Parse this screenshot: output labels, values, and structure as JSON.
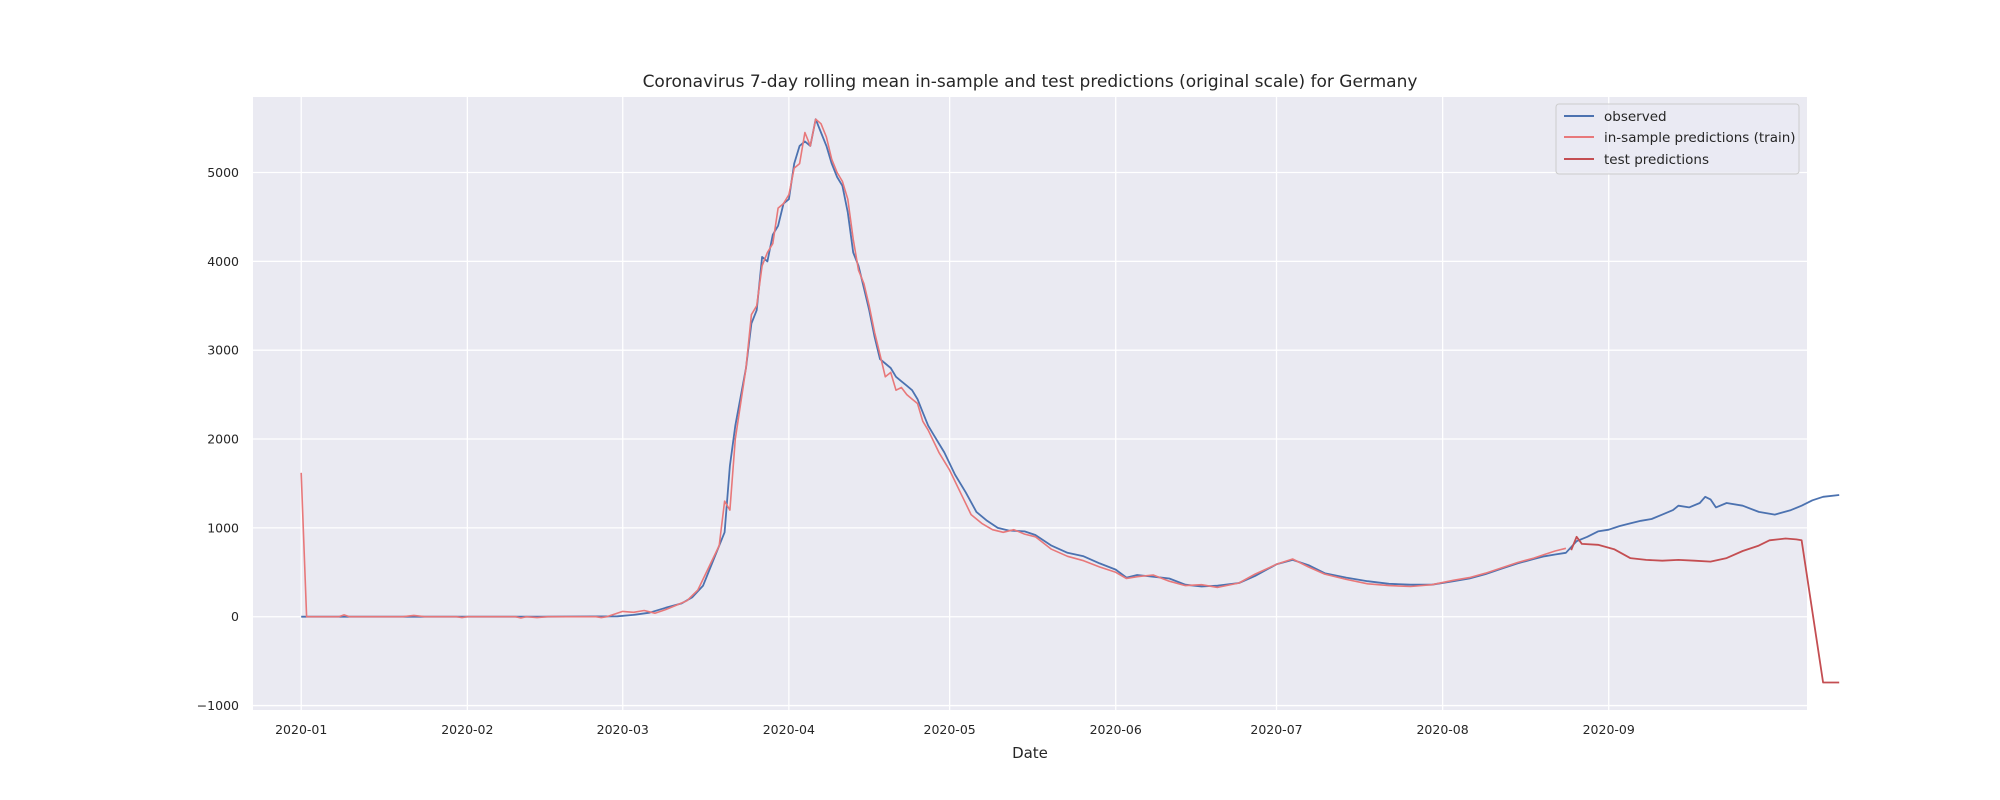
{
  "chart_data": {
    "type": "line",
    "title": "Coronavirus 7-day rolling mean in-sample and test predictions (original scale) for Germany",
    "xlabel": "Date",
    "ylabel": "",
    "x_ticks": [
      "2020-01",
      "2020-02",
      "2020-03",
      "2020-04",
      "2020-05",
      "2020-06",
      "2020-07",
      "2020-08",
      "2020-09"
    ],
    "y_ticks": [
      -1000,
      0,
      1000,
      2000,
      3000,
      4000,
      5000
    ],
    "y_tick_labels": [
      "−1000",
      "0",
      "1000",
      "2000",
      "3000",
      "4000",
      "5000"
    ],
    "xlim": [
      "2019-12-23",
      "2020-10-08"
    ],
    "ylim": [
      -1050,
      5850
    ],
    "grid": true,
    "legend_position": "top-right",
    "colors": {
      "background": "#eaeaf2",
      "grid": "#ffffff",
      "observed": "#4c72b0",
      "train": "#e8787a",
      "test": "#c44e52"
    },
    "series": [
      {
        "name": "observed",
        "color": "#4c72b0",
        "points": [
          [
            "2020-01-01",
            0
          ],
          [
            "2020-01-15",
            0
          ],
          [
            "2020-02-01",
            0
          ],
          [
            "2020-02-15",
            0
          ],
          [
            "2020-02-29",
            5
          ],
          [
            "2020-03-03",
            20
          ],
          [
            "2020-03-06",
            45
          ],
          [
            "2020-03-09",
            100
          ],
          [
            "2020-03-12",
            150
          ],
          [
            "2020-03-14",
            220
          ],
          [
            "2020-03-16",
            350
          ],
          [
            "2020-03-18",
            650
          ],
          [
            "2020-03-20",
            950
          ],
          [
            "2020-03-21",
            1700
          ],
          [
            "2020-03-22",
            2150
          ],
          [
            "2020-03-24",
            2800
          ],
          [
            "2020-03-25",
            3300
          ],
          [
            "2020-03-26",
            3450
          ],
          [
            "2020-03-27",
            4050
          ],
          [
            "2020-03-28",
            4000
          ],
          [
            "2020-03-29",
            4300
          ],
          [
            "2020-03-30",
            4400
          ],
          [
            "2020-03-31",
            4650
          ],
          [
            "2020-04-01",
            4700
          ],
          [
            "2020-04-02",
            5100
          ],
          [
            "2020-04-03",
            5300
          ],
          [
            "2020-04-04",
            5350
          ],
          [
            "2020-04-05",
            5300
          ],
          [
            "2020-04-06",
            5600
          ],
          [
            "2020-04-07",
            5450
          ],
          [
            "2020-04-08",
            5300
          ],
          [
            "2020-04-09",
            5100
          ],
          [
            "2020-04-10",
            4950
          ],
          [
            "2020-04-11",
            4850
          ],
          [
            "2020-04-12",
            4550
          ],
          [
            "2020-04-13",
            4100
          ],
          [
            "2020-04-14",
            3950
          ],
          [
            "2020-04-15",
            3700
          ],
          [
            "2020-04-16",
            3450
          ],
          [
            "2020-04-17",
            3150
          ],
          [
            "2020-04-18",
            2900
          ],
          [
            "2020-04-19",
            2850
          ],
          [
            "2020-04-20",
            2800
          ],
          [
            "2020-04-21",
            2700
          ],
          [
            "2020-04-22",
            2650
          ],
          [
            "2020-04-23",
            2600
          ],
          [
            "2020-04-24",
            2550
          ],
          [
            "2020-04-25",
            2450
          ],
          [
            "2020-04-26",
            2300
          ],
          [
            "2020-04-27",
            2150
          ],
          [
            "2020-04-28",
            2050
          ],
          [
            "2020-04-29",
            1950
          ],
          [
            "2020-04-30",
            1850
          ],
          [
            "2020-05-02",
            1600
          ],
          [
            "2020-05-04",
            1400
          ],
          [
            "2020-05-06",
            1180
          ],
          [
            "2020-05-08",
            1080
          ],
          [
            "2020-05-10",
            1000
          ],
          [
            "2020-05-12",
            970
          ],
          [
            "2020-05-15",
            960
          ],
          [
            "2020-05-17",
            920
          ],
          [
            "2020-05-20",
            800
          ],
          [
            "2020-05-23",
            720
          ],
          [
            "2020-05-26",
            680
          ],
          [
            "2020-05-29",
            600
          ],
          [
            "2020-06-01",
            530
          ],
          [
            "2020-06-03",
            440
          ],
          [
            "2020-06-05",
            470
          ],
          [
            "2020-06-08",
            450
          ],
          [
            "2020-06-11",
            430
          ],
          [
            "2020-06-14",
            360
          ],
          [
            "2020-06-17",
            340
          ],
          [
            "2020-06-20",
            350
          ],
          [
            "2020-06-24",
            380
          ],
          [
            "2020-06-27",
            460
          ],
          [
            "2020-07-01",
            590
          ],
          [
            "2020-07-04",
            640
          ],
          [
            "2020-07-07",
            580
          ],
          [
            "2020-07-10",
            490
          ],
          [
            "2020-07-14",
            440
          ],
          [
            "2020-07-18",
            400
          ],
          [
            "2020-07-22",
            370
          ],
          [
            "2020-07-26",
            360
          ],
          [
            "2020-07-30",
            360
          ],
          [
            "2020-08-03",
            400
          ],
          [
            "2020-08-06",
            430
          ],
          [
            "2020-08-09",
            480
          ],
          [
            "2020-08-12",
            540
          ],
          [
            "2020-08-15",
            600
          ],
          [
            "2020-08-18",
            650
          ],
          [
            "2020-08-20",
            680
          ],
          [
            "2020-08-22",
            700
          ],
          [
            "2020-08-24",
            720
          ],
          [
            "2020-08-26",
            850
          ],
          [
            "2020-08-28",
            900
          ],
          [
            "2020-08-30",
            960
          ],
          [
            "2020-09-01",
            980
          ],
          [
            "2020-09-03",
            1020
          ],
          [
            "2020-09-05",
            1050
          ],
          [
            "2020-09-07",
            1080
          ],
          [
            "2020-09-09",
            1100
          ],
          [
            "2020-09-11",
            1150
          ],
          [
            "2020-09-13",
            1200
          ],
          [
            "2020-09-14",
            1250
          ],
          [
            "2020-09-16",
            1230
          ],
          [
            "2020-09-18",
            1280
          ],
          [
            "2020-09-19",
            1350
          ],
          [
            "2020-09-20",
            1320
          ],
          [
            "2020-09-21",
            1230
          ],
          [
            "2020-09-23",
            1280
          ],
          [
            "2020-09-26",
            1250
          ],
          [
            "2020-09-29",
            1180
          ],
          [
            "2020-10-02",
            1150
          ],
          [
            "2020-10-05",
            1200
          ],
          [
            "2020-10-07",
            1250
          ],
          [
            "2020-10-09",
            1310
          ],
          [
            "2020-10-11",
            1350
          ],
          [
            "2020-10-14",
            1370
          ]
        ]
      },
      {
        "name": "in-sample predictions (train)",
        "color": "#e8787a",
        "points": [
          [
            "2020-01-01",
            1620
          ],
          [
            "2020-01-02",
            0
          ],
          [
            "2020-01-08",
            0
          ],
          [
            "2020-01-09",
            20
          ],
          [
            "2020-01-10",
            0
          ],
          [
            "2020-01-20",
            0
          ],
          [
            "2020-01-22",
            15
          ],
          [
            "2020-01-24",
            0
          ],
          [
            "2020-01-30",
            0
          ],
          [
            "2020-01-31",
            -10
          ],
          [
            "2020-02-01",
            0
          ],
          [
            "2020-02-10",
            0
          ],
          [
            "2020-02-11",
            -15
          ],
          [
            "2020-02-12",
            0
          ],
          [
            "2020-02-14",
            -10
          ],
          [
            "2020-02-16",
            0
          ],
          [
            "2020-02-25",
            0
          ],
          [
            "2020-02-26",
            -10
          ],
          [
            "2020-02-27",
            0
          ],
          [
            "2020-03-01",
            60
          ],
          [
            "2020-03-03",
            50
          ],
          [
            "2020-03-05",
            70
          ],
          [
            "2020-03-07",
            40
          ],
          [
            "2020-03-09",
            80
          ],
          [
            "2020-03-11",
            130
          ],
          [
            "2020-03-13",
            180
          ],
          [
            "2020-03-15",
            300
          ],
          [
            "2020-03-17",
            550
          ],
          [
            "2020-03-19",
            800
          ],
          [
            "2020-03-20",
            1300
          ],
          [
            "2020-03-21",
            1200
          ],
          [
            "2020-03-22",
            2000
          ],
          [
            "2020-03-24",
            2800
          ],
          [
            "2020-03-25",
            3400
          ],
          [
            "2020-03-26",
            3500
          ],
          [
            "2020-03-27",
            3950
          ],
          [
            "2020-03-28",
            4100
          ],
          [
            "2020-03-29",
            4200
          ],
          [
            "2020-03-30",
            4600
          ],
          [
            "2020-03-31",
            4650
          ],
          [
            "2020-04-01",
            4750
          ],
          [
            "2020-04-02",
            5050
          ],
          [
            "2020-04-03",
            5100
          ],
          [
            "2020-04-04",
            5450
          ],
          [
            "2020-04-05",
            5300
          ],
          [
            "2020-04-06",
            5600
          ],
          [
            "2020-04-07",
            5550
          ],
          [
            "2020-04-08",
            5400
          ],
          [
            "2020-04-09",
            5150
          ],
          [
            "2020-04-10",
            5000
          ],
          [
            "2020-04-11",
            4900
          ],
          [
            "2020-04-12",
            4700
          ],
          [
            "2020-04-13",
            4250
          ],
          [
            "2020-04-14",
            3900
          ],
          [
            "2020-04-15",
            3750
          ],
          [
            "2020-04-16",
            3500
          ],
          [
            "2020-04-17",
            3200
          ],
          [
            "2020-04-18",
            2950
          ],
          [
            "2020-04-19",
            2700
          ],
          [
            "2020-04-20",
            2750
          ],
          [
            "2020-04-21",
            2550
          ],
          [
            "2020-04-22",
            2580
          ],
          [
            "2020-04-23",
            2500
          ],
          [
            "2020-04-24",
            2450
          ],
          [
            "2020-04-25",
            2400
          ],
          [
            "2020-04-26",
            2200
          ],
          [
            "2020-04-27",
            2100
          ],
          [
            "2020-04-29",
            1850
          ],
          [
            "2020-05-01",
            1650
          ],
          [
            "2020-05-03",
            1400
          ],
          [
            "2020-05-05",
            1150
          ],
          [
            "2020-05-07",
            1050
          ],
          [
            "2020-05-09",
            980
          ],
          [
            "2020-05-11",
            950
          ],
          [
            "2020-05-13",
            980
          ],
          [
            "2020-05-15",
            930
          ],
          [
            "2020-05-17",
            900
          ],
          [
            "2020-05-20",
            760
          ],
          [
            "2020-05-23",
            680
          ],
          [
            "2020-05-26",
            630
          ],
          [
            "2020-05-29",
            560
          ],
          [
            "2020-06-01",
            500
          ],
          [
            "2020-06-03",
            430
          ],
          [
            "2020-06-05",
            450
          ],
          [
            "2020-06-08",
            470
          ],
          [
            "2020-06-11",
            400
          ],
          [
            "2020-06-14",
            350
          ],
          [
            "2020-06-17",
            360
          ],
          [
            "2020-06-20",
            330
          ],
          [
            "2020-06-24",
            380
          ],
          [
            "2020-06-27",
            480
          ],
          [
            "2020-07-01",
            590
          ],
          [
            "2020-07-04",
            650
          ],
          [
            "2020-07-07",
            560
          ],
          [
            "2020-07-10",
            480
          ],
          [
            "2020-07-14",
            420
          ],
          [
            "2020-07-18",
            370
          ],
          [
            "2020-07-22",
            350
          ],
          [
            "2020-07-26",
            340
          ],
          [
            "2020-07-30",
            360
          ],
          [
            "2020-08-03",
            410
          ],
          [
            "2020-08-06",
            440
          ],
          [
            "2020-08-09",
            490
          ],
          [
            "2020-08-12",
            550
          ],
          [
            "2020-08-15",
            610
          ],
          [
            "2020-08-18",
            660
          ],
          [
            "2020-08-20",
            700
          ],
          [
            "2020-08-22",
            740
          ],
          [
            "2020-08-24",
            770
          ]
        ]
      },
      {
        "name": "test predictions",
        "color": "#c44e52",
        "points": [
          [
            "2020-08-25",
            750
          ],
          [
            "2020-08-26",
            900
          ],
          [
            "2020-08-27",
            820
          ],
          [
            "2020-08-30",
            810
          ],
          [
            "2020-09-02",
            760
          ],
          [
            "2020-09-05",
            660
          ],
          [
            "2020-09-08",
            640
          ],
          [
            "2020-09-11",
            630
          ],
          [
            "2020-09-14",
            640
          ],
          [
            "2020-09-17",
            630
          ],
          [
            "2020-09-20",
            620
          ],
          [
            "2020-09-23",
            660
          ],
          [
            "2020-09-26",
            740
          ],
          [
            "2020-09-29",
            800
          ],
          [
            "2020-10-01",
            860
          ],
          [
            "2020-10-04",
            880
          ],
          [
            "2020-10-06",
            870
          ],
          [
            "2020-10-07",
            860
          ],
          [
            "2020-10-11",
            -740
          ],
          [
            "2020-10-14",
            -740
          ]
        ]
      }
    ]
  }
}
